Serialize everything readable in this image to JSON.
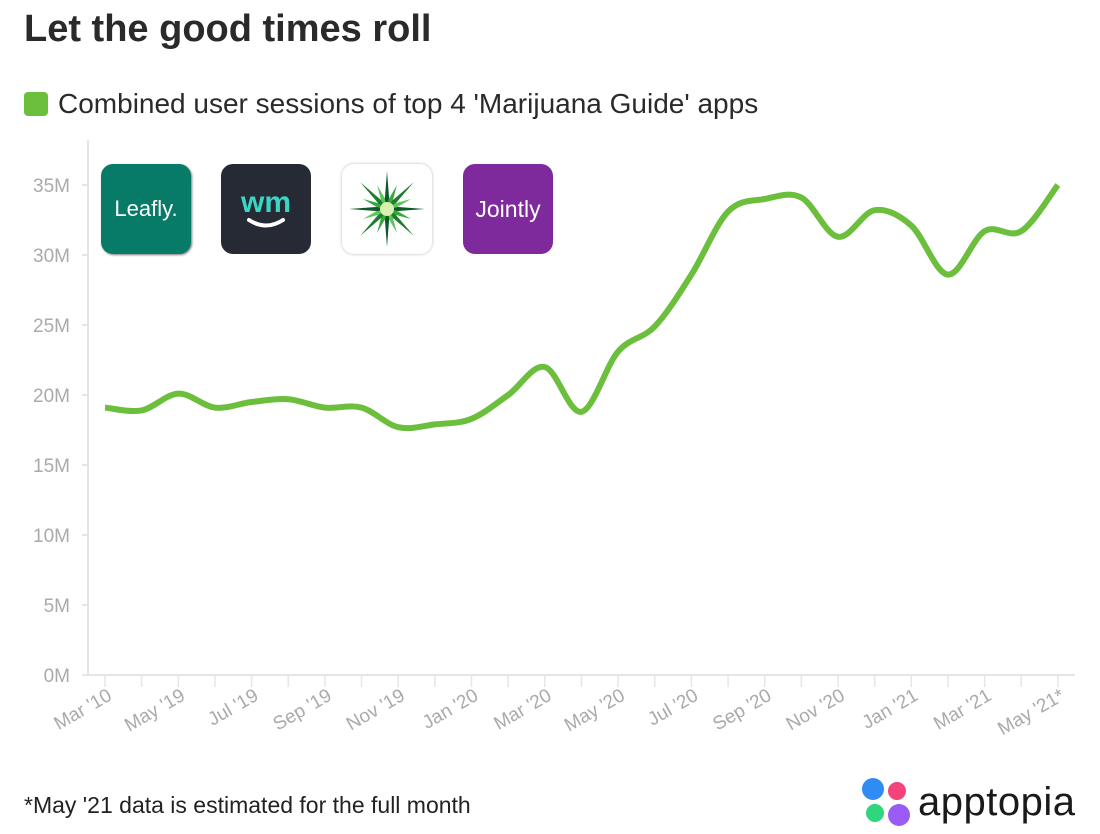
{
  "chart_data": {
    "type": "line",
    "title": "Let the good times roll",
    "xlabel": "",
    "ylabel": "",
    "series": [
      {
        "name": "Combined user sessions of top 4 'Marijuana Guide' apps",
        "color": "#6cbf3c",
        "values": [
          19.1,
          18.9,
          20.1,
          19.1,
          19.5,
          19.7,
          19.1,
          19.1,
          17.7,
          17.9,
          18.3,
          20.0,
          22.0,
          18.8,
          23.1,
          24.9,
          28.6,
          33.1,
          34.0,
          34.1,
          31.3,
          33.2,
          32.1,
          28.6,
          31.7,
          31.7,
          35.0
        ]
      }
    ],
    "value_unit": "M",
    "x_tick_labels": [
      "Mar '10",
      "May '19",
      "Jul '19",
      "Sep '19",
      "Nov '19",
      "Jan '20",
      "Mar '20",
      "May '20",
      "Jul '20",
      "Sep '20",
      "Nov '20",
      "Jan '21",
      "Mar '21",
      "May '21*"
    ],
    "y_tick_labels": [
      "0M",
      "5M",
      "10M",
      "15M",
      "20M",
      "25M",
      "30M",
      "35M"
    ],
    "ylim": [
      0,
      35
    ],
    "grid": false,
    "legend": "top-left"
  },
  "apps": [
    {
      "name": "Leafly",
      "label": "Leafly.",
      "bg": "#077a68"
    },
    {
      "name": "Weedmaps",
      "label": "wm",
      "bg": "#262a35"
    },
    {
      "name": "Strain guide",
      "bg": "#ffffff"
    },
    {
      "name": "Jointly",
      "label": "Jointly",
      "bg": "#7e2a9c"
    }
  ],
  "footnote": "*May '21 data is estimated for the full month",
  "brand": {
    "name": "apptopia",
    "colors": [
      "#2f8cf5",
      "#f2437a",
      "#2fd67d",
      "#9b5cf5"
    ]
  }
}
